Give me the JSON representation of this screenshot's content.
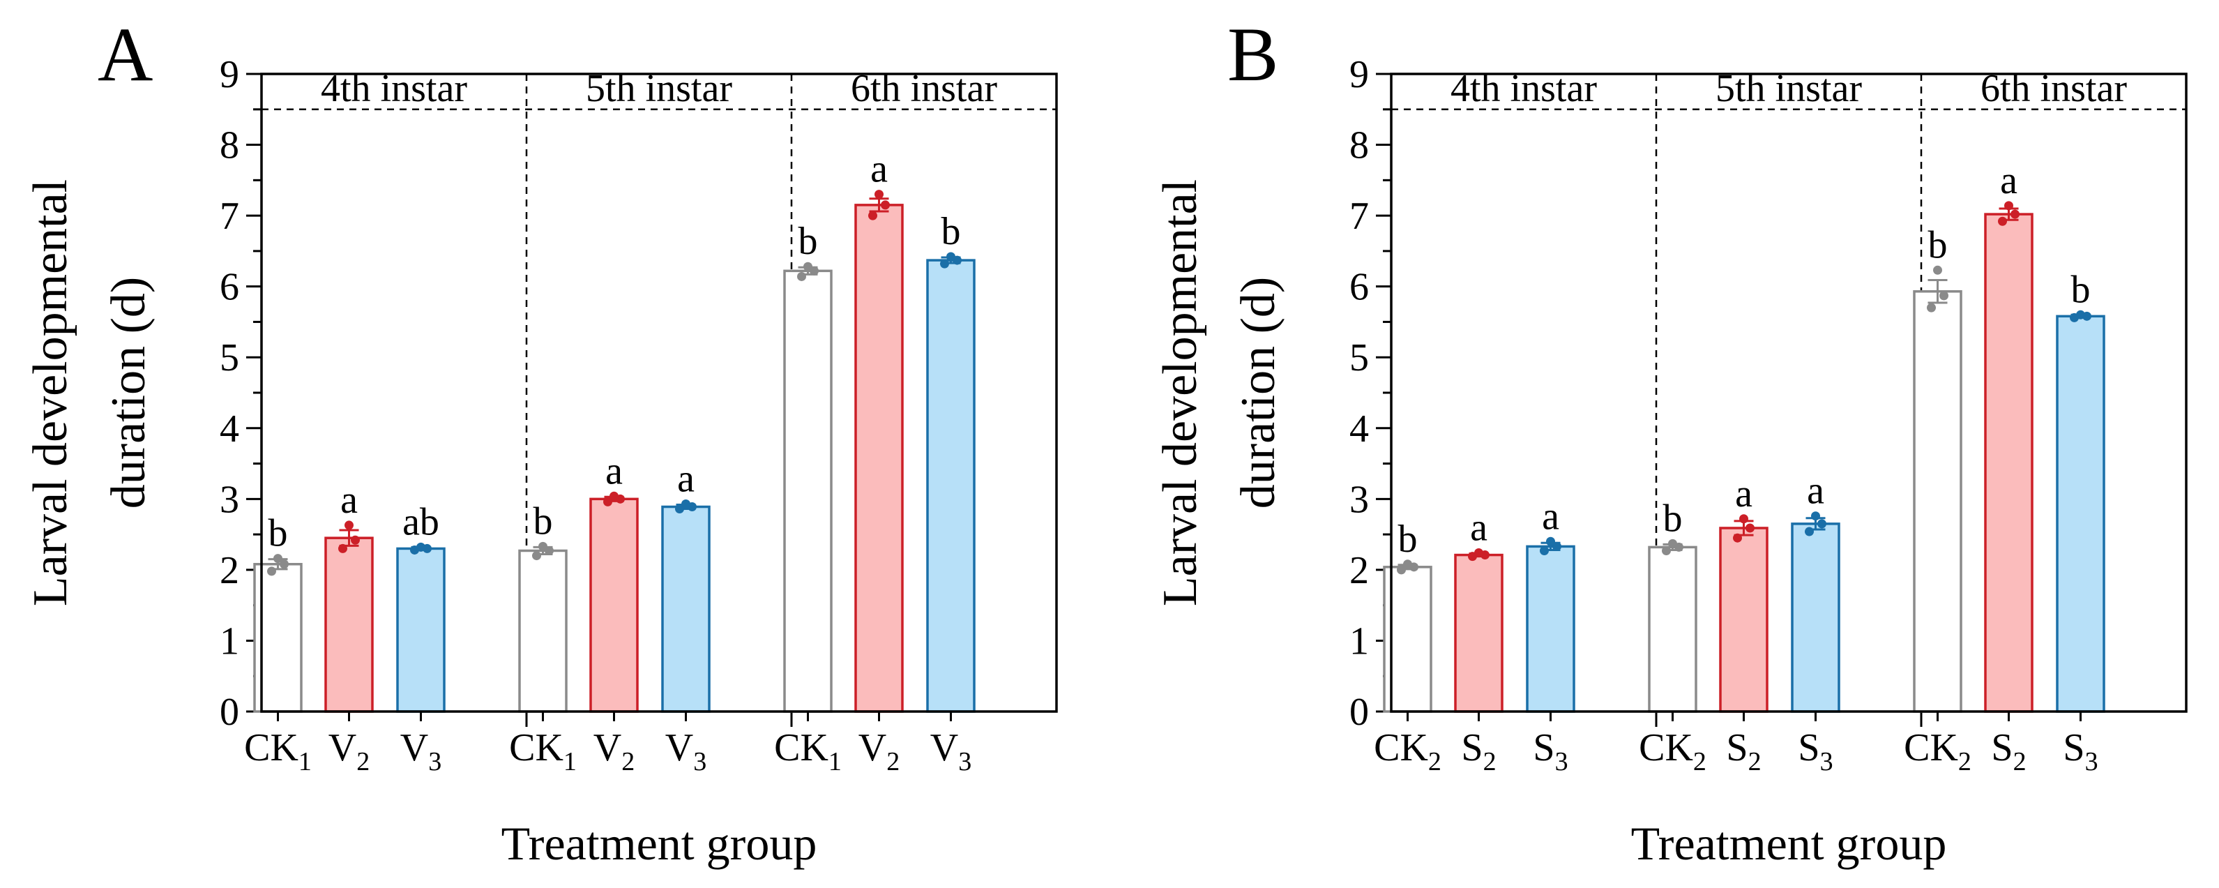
{
  "figure": {
    "colors": {
      "ck_stroke": "#8a8a8a",
      "ck_fill": "#ffffff",
      "ck_dot": "#8a8a8a",
      "v_stroke": "#cc1f27",
      "v_fill": "#fbbcbc",
      "v_dot": "#cc1f27",
      "w_stroke": "#1a6fa8",
      "w_fill": "#b7e0f8",
      "w_dot": "#1a6fa8"
    }
  },
  "chart_data": [
    {
      "type": "bar",
      "panel_label": "A",
      "ylabel_line1": "Larval   developmental",
      "ylabel_line2": "duration (d)",
      "xlabel": "Treatment group",
      "ylim": [
        0,
        9
      ],
      "yticks": [
        "0",
        "1",
        "2",
        "3",
        "4",
        "5",
        "6",
        "7",
        "8",
        "9"
      ],
      "threshold_line": 8.5,
      "groups": [
        {
          "name": "4th instar",
          "bars": [
            {
              "base": "CK",
              "sub": "1",
              "style": "ck",
              "value": 2.08,
              "err": 0.07,
              "letter": "b",
              "points": [
                1.98,
                2.08,
                2.16
              ]
            },
            {
              "base": "V",
              "sub": "2",
              "style": "v",
              "value": 2.45,
              "err": 0.11,
              "letter": "a",
              "points": [
                2.3,
                2.42,
                2.63
              ]
            },
            {
              "base": "V",
              "sub": "3",
              "style": "w",
              "value": 2.3,
              "err": 0.02,
              "letter": "ab",
              "points": [
                2.28,
                2.3,
                2.32
              ]
            }
          ]
        },
        {
          "name": "5th instar",
          "bars": [
            {
              "base": "CK",
              "sub": "1",
              "style": "ck",
              "value": 2.27,
              "err": 0.05,
              "letter": "b",
              "points": [
                2.2,
                2.27,
                2.33
              ]
            },
            {
              "base": "V",
              "sub": "2",
              "style": "v",
              "value": 3.0,
              "err": 0.03,
              "letter": "a",
              "points": [
                2.96,
                3.0,
                3.04
              ]
            },
            {
              "base": "V",
              "sub": "3",
              "style": "w",
              "value": 2.89,
              "err": 0.03,
              "letter": "a",
              "points": [
                2.86,
                2.89,
                2.93
              ]
            }
          ]
        },
        {
          "name": "6th instar",
          "bars": [
            {
              "base": "CK",
              "sub": "1",
              "style": "ck",
              "value": 6.22,
              "err": 0.05,
              "letter": "b",
              "points": [
                6.14,
                6.22,
                6.28
              ]
            },
            {
              "base": "V",
              "sub": "2",
              "style": "v",
              "value": 7.15,
              "err": 0.09,
              "letter": "a",
              "points": [
                7.0,
                7.15,
                7.3
              ]
            },
            {
              "base": "V",
              "sub": "3",
              "style": "w",
              "value": 6.37,
              "err": 0.04,
              "letter": "b",
              "points": [
                6.32,
                6.37,
                6.42
              ]
            }
          ]
        }
      ]
    },
    {
      "type": "bar",
      "panel_label": "B",
      "ylabel_line1": "Larval   developmental",
      "ylabel_line2": "duration (d)",
      "xlabel": "Treatment group",
      "ylim": [
        0,
        9
      ],
      "yticks": [
        "0",
        "1",
        "2",
        "3",
        "4",
        "5",
        "6",
        "7",
        "8",
        "9"
      ],
      "threshold_line": 8.5,
      "groups": [
        {
          "name": "4th instar",
          "bars": [
            {
              "base": "CK",
              "sub": "2",
              "style": "ck",
              "value": 2.04,
              "err": 0.03,
              "letter": "b",
              "points": [
                2.0,
                2.04,
                2.08
              ]
            },
            {
              "base": "S",
              "sub": "2",
              "style": "v",
              "value": 2.21,
              "err": 0.02,
              "letter": "a",
              "points": [
                2.19,
                2.21,
                2.24
              ]
            },
            {
              "base": "S",
              "sub": "3",
              "style": "w",
              "value": 2.33,
              "err": 0.05,
              "letter": "a",
              "points": [
                2.27,
                2.33,
                2.4
              ]
            }
          ]
        },
        {
          "name": "5th instar",
          "bars": [
            {
              "base": "CK",
              "sub": "2",
              "style": "ck",
              "value": 2.32,
              "err": 0.04,
              "letter": "b",
              "points": [
                2.27,
                2.32,
                2.37
              ]
            },
            {
              "base": "S",
              "sub": "2",
              "style": "v",
              "value": 2.59,
              "err": 0.1,
              "letter": "a",
              "points": [
                2.45,
                2.59,
                2.72
              ]
            },
            {
              "base": "S",
              "sub": "3",
              "style": "w",
              "value": 2.65,
              "err": 0.08,
              "letter": "a",
              "points": [
                2.54,
                2.65,
                2.76
              ]
            }
          ]
        },
        {
          "name": "6th instar",
          "bars": [
            {
              "base": "CK",
              "sub": "2",
              "style": "ck",
              "value": 5.93,
              "err": 0.16,
              "letter": "b",
              "points": [
                5.7,
                5.87,
                6.23
              ]
            },
            {
              "base": "S",
              "sub": "2",
              "style": "v",
              "value": 7.02,
              "err": 0.08,
              "letter": "a",
              "points": [
                6.92,
                7.02,
                7.14
              ]
            },
            {
              "base": "S",
              "sub": "3",
              "style": "w",
              "value": 5.58,
              "err": 0.02,
              "letter": "b",
              "points": [
                5.56,
                5.58,
                5.6
              ]
            }
          ]
        }
      ]
    }
  ]
}
